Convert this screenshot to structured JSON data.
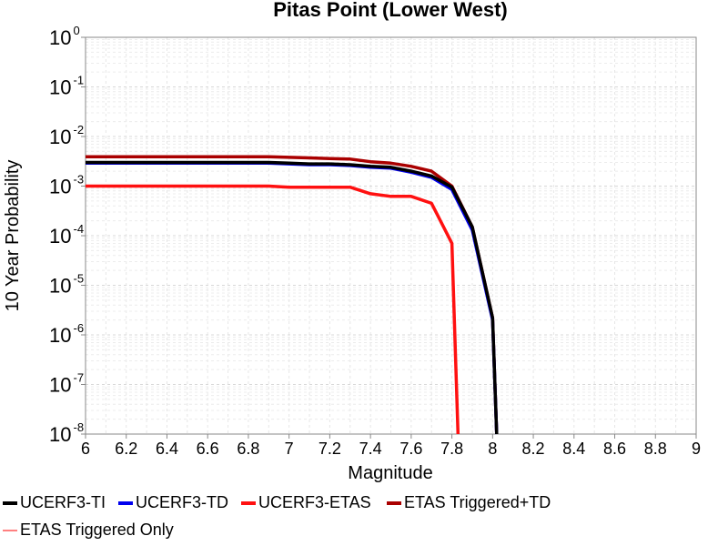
{
  "chart_data": {
    "type": "line",
    "title": "Pitas Point (Lower West)",
    "xlabel": "Magnitude",
    "ylabel": "10 Year Probability",
    "xlim": [
      6,
      9
    ],
    "ylim": [
      1e-08,
      1
    ],
    "yscale": "log",
    "grid": true,
    "legend_position": "bottom",
    "x_ticks": [
      "6",
      "6.2",
      "6.4",
      "6.6",
      "6.8",
      "7",
      "7.2",
      "7.4",
      "7.6",
      "7.8",
      "8",
      "8.2",
      "8.4",
      "8.6",
      "8.8",
      "9"
    ],
    "y_ticks": [
      {
        "base": "10",
        "exp": "0",
        "value": 1
      },
      {
        "base": "10",
        "exp": "-1",
        "value": 0.1
      },
      {
        "base": "10",
        "exp": "-2",
        "value": 0.01
      },
      {
        "base": "10",
        "exp": "-3",
        "value": 0.001
      },
      {
        "base": "10",
        "exp": "-4",
        "value": 0.0001
      },
      {
        "base": "10",
        "exp": "-5",
        "value": 1e-05
      },
      {
        "base": "10",
        "exp": "-6",
        "value": 1e-06
      },
      {
        "base": "10",
        "exp": "-7",
        "value": 1e-07
      },
      {
        "base": "10",
        "exp": "-8",
        "value": 1e-08
      }
    ],
    "series": [
      {
        "name": "UCERF3-TI",
        "color": "#000000",
        "x": [
          6.0,
          6.1,
          6.2,
          6.3,
          6.4,
          6.5,
          6.6,
          6.7,
          6.8,
          6.9,
          7.0,
          7.1,
          7.2,
          7.3,
          7.4,
          7.5,
          7.6,
          7.7,
          7.8,
          7.9,
          8.0,
          8.02
        ],
        "y": [
          0.003,
          0.003,
          0.003,
          0.003,
          0.003,
          0.003,
          0.003,
          0.003,
          0.003,
          0.003,
          0.0029,
          0.0028,
          0.0028,
          0.0027,
          0.0025,
          0.0024,
          0.002,
          0.0016,
          0.00095,
          0.00015,
          2.2e-06,
          1e-08
        ]
      },
      {
        "name": "UCERF3-TD",
        "color": "#0000ee",
        "x": [
          6.0,
          6.1,
          6.2,
          6.3,
          6.4,
          6.5,
          6.6,
          6.7,
          6.8,
          6.9,
          7.0,
          7.1,
          7.2,
          7.3,
          7.4,
          7.5,
          7.6,
          7.7,
          7.8,
          7.9,
          8.0,
          8.02
        ],
        "y": [
          0.0029,
          0.0029,
          0.0029,
          0.0029,
          0.0029,
          0.0029,
          0.0029,
          0.0029,
          0.0029,
          0.0029,
          0.0028,
          0.0027,
          0.0027,
          0.0026,
          0.0024,
          0.0023,
          0.0019,
          0.0015,
          0.00085,
          0.00013,
          2e-06,
          1e-08
        ]
      },
      {
        "name": "UCERF3-ETAS",
        "color": "#ff1010",
        "x": [
          6.0,
          6.1,
          6.2,
          6.3,
          6.4,
          6.5,
          6.6,
          6.7,
          6.8,
          6.9,
          7.0,
          7.1,
          7.2,
          7.3,
          7.4,
          7.5,
          7.6,
          7.7,
          7.8,
          7.83
        ],
        "y": [
          0.001,
          0.001,
          0.001,
          0.001,
          0.001,
          0.001,
          0.001,
          0.001,
          0.001,
          0.001,
          0.00095,
          0.00095,
          0.00095,
          0.00095,
          0.0007,
          0.00062,
          0.00062,
          0.00045,
          7e-05,
          1e-08
        ]
      },
      {
        "name": "ETAS Triggered+TD",
        "color": "#aa0000",
        "x": [
          6.0,
          6.1,
          6.2,
          6.3,
          6.4,
          6.5,
          6.6,
          6.7,
          6.8,
          6.9,
          7.0,
          7.1,
          7.2,
          7.3,
          7.4,
          7.5,
          7.6,
          7.7,
          7.8,
          7.9,
          8.0,
          8.02
        ],
        "y": [
          0.0039,
          0.0039,
          0.0039,
          0.0039,
          0.0039,
          0.0039,
          0.0039,
          0.0039,
          0.0039,
          0.0039,
          0.0038,
          0.0037,
          0.0036,
          0.0035,
          0.0031,
          0.0029,
          0.0025,
          0.002,
          0.001,
          0.00015,
          2.2e-06,
          1e-08
        ]
      },
      {
        "name": "ETAS Triggered Only",
        "color": "#ff8080",
        "x": [],
        "y": []
      }
    ]
  }
}
